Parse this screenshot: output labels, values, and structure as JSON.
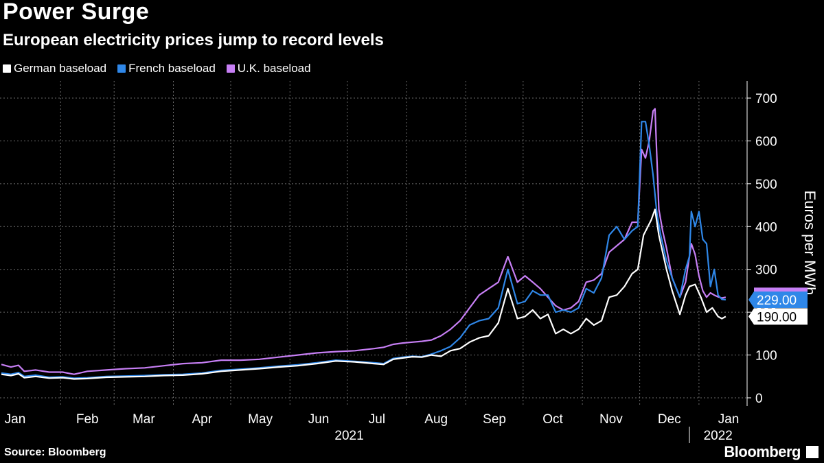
{
  "header": {
    "title": "Power Surge",
    "subtitle": "European electricity prices jump to record levels"
  },
  "footer": {
    "source": "Source: Bloomberg",
    "brand": "Bloomberg"
  },
  "colors": {
    "background": "#000000",
    "grid": "#6b6b6b",
    "german": "#ffffff",
    "french": "#2f87e8",
    "uk": "#c77ff5"
  },
  "chart_data": {
    "type": "line",
    "title": "Power Surge",
    "subtitle": "European electricity prices jump to record levels",
    "xlabel": "",
    "ylabel": "Euros per MWh",
    "ylim": [
      0,
      740
    ],
    "yticks": [
      0,
      100,
      200,
      300,
      400,
      500,
      600,
      700
    ],
    "xlim": [
      0,
      383
    ],
    "month_ticks": [
      {
        "label": "Jan",
        "day": 0
      },
      {
        "label": "Feb",
        "day": 31
      },
      {
        "label": "Mar",
        "day": 59
      },
      {
        "label": "Apr",
        "day": 90
      },
      {
        "label": "May",
        "day": 120
      },
      {
        "label": "Jun",
        "day": 151
      },
      {
        "label": "Jul",
        "day": 181
      },
      {
        "label": "Aug",
        "day": 212
      },
      {
        "label": "Sep",
        "day": 243
      },
      {
        "label": "Oct",
        "day": 273
      },
      {
        "label": "Nov",
        "day": 304
      },
      {
        "label": "Dec",
        "day": 334
      },
      {
        "label": "Jan",
        "day": 365
      }
    ],
    "year_labels": [
      {
        "label": "2021",
        "day": 182
      },
      {
        "label": "2022",
        "day": 375
      }
    ],
    "year_divider_day": 360,
    "grid": true,
    "legend_position": "top-left",
    "series": [
      {
        "name": "German baseload",
        "key": "german",
        "last_value_label": "190.00",
        "points": [
          [
            0,
            55
          ],
          [
            5,
            52
          ],
          [
            9,
            56
          ],
          [
            12,
            47
          ],
          [
            18,
            50
          ],
          [
            25,
            46
          ],
          [
            32,
            47
          ],
          [
            38,
            44
          ],
          [
            45,
            45
          ],
          [
            55,
            48
          ],
          [
            65,
            49
          ],
          [
            75,
            50
          ],
          [
            85,
            52
          ],
          [
            95,
            53
          ],
          [
            105,
            56
          ],
          [
            115,
            62
          ],
          [
            125,
            65
          ],
          [
            135,
            68
          ],
          [
            145,
            72
          ],
          [
            155,
            75
          ],
          [
            165,
            80
          ],
          [
            175,
            86
          ],
          [
            185,
            84
          ],
          [
            195,
            80
          ],
          [
            200,
            78
          ],
          [
            205,
            90
          ],
          [
            210,
            93
          ],
          [
            215,
            96
          ],
          [
            220,
            95
          ],
          [
            225,
            100
          ],
          [
            230,
            97
          ],
          [
            235,
            110
          ],
          [
            240,
            115
          ],
          [
            245,
            130
          ],
          [
            250,
            140
          ],
          [
            255,
            145
          ],
          [
            260,
            175
          ],
          [
            265,
            255
          ],
          [
            270,
            185
          ],
          [
            274,
            190
          ],
          [
            278,
            205
          ],
          [
            282,
            185
          ],
          [
            286,
            195
          ],
          [
            290,
            150
          ],
          [
            294,
            160
          ],
          [
            298,
            150
          ],
          [
            302,
            160
          ],
          [
            306,
            185
          ],
          [
            310,
            170
          ],
          [
            314,
            180
          ],
          [
            318,
            235
          ],
          [
            322,
            240
          ],
          [
            326,
            260
          ],
          [
            330,
            290
          ],
          [
            333,
            300
          ],
          [
            336,
            380
          ],
          [
            340,
            415
          ],
          [
            342,
            440
          ],
          [
            344,
            380
          ],
          [
            346,
            340
          ],
          [
            348,
            300
          ],
          [
            351,
            250
          ],
          [
            355,
            195
          ],
          [
            358,
            240
          ],
          [
            360,
            260
          ],
          [
            363,
            265
          ],
          [
            366,
            235
          ],
          [
            369,
            200
          ],
          [
            372,
            210
          ],
          [
            375,
            190
          ],
          [
            377,
            185
          ],
          [
            379,
            190
          ]
        ]
      },
      {
        "name": "French baseload",
        "key": "french",
        "last_value_label": "229.00",
        "points": [
          [
            0,
            58
          ],
          [
            5,
            55
          ],
          [
            9,
            59
          ],
          [
            12,
            50
          ],
          [
            18,
            53
          ],
          [
            25,
            48
          ],
          [
            32,
            49
          ],
          [
            38,
            46
          ],
          [
            45,
            47
          ],
          [
            55,
            50
          ],
          [
            65,
            51
          ],
          [
            75,
            52
          ],
          [
            85,
            54
          ],
          [
            95,
            55
          ],
          [
            105,
            58
          ],
          [
            115,
            64
          ],
          [
            125,
            67
          ],
          [
            135,
            70
          ],
          [
            145,
            74
          ],
          [
            155,
            77
          ],
          [
            165,
            82
          ],
          [
            175,
            88
          ],
          [
            185,
            85
          ],
          [
            195,
            82
          ],
          [
            200,
            80
          ],
          [
            205,
            92
          ],
          [
            210,
            95
          ],
          [
            215,
            97
          ],
          [
            220,
            96
          ],
          [
            225,
            102
          ],
          [
            230,
            110
          ],
          [
            235,
            120
          ],
          [
            240,
            140
          ],
          [
            245,
            170
          ],
          [
            250,
            180
          ],
          [
            255,
            185
          ],
          [
            260,
            210
          ],
          [
            265,
            300
          ],
          [
            270,
            220
          ],
          [
            274,
            225
          ],
          [
            278,
            250
          ],
          [
            282,
            240
          ],
          [
            286,
            240
          ],
          [
            290,
            200
          ],
          [
            294,
            205
          ],
          [
            298,
            200
          ],
          [
            302,
            210
          ],
          [
            306,
            255
          ],
          [
            310,
            245
          ],
          [
            314,
            280
          ],
          [
            318,
            380
          ],
          [
            322,
            400
          ],
          [
            326,
            370
          ],
          [
            330,
            390
          ],
          [
            333,
            400
          ],
          [
            335,
            645
          ],
          [
            337,
            645
          ],
          [
            339,
            590
          ],
          [
            341,
            520
          ],
          [
            343,
            430
          ],
          [
            345,
            380
          ],
          [
            348,
            320
          ],
          [
            351,
            280
          ],
          [
            355,
            235
          ],
          [
            358,
            300
          ],
          [
            360,
            330
          ],
          [
            361,
            435
          ],
          [
            363,
            400
          ],
          [
            365,
            435
          ],
          [
            367,
            370
          ],
          [
            369,
            360
          ],
          [
            371,
            260
          ],
          [
            373,
            300
          ],
          [
            375,
            240
          ],
          [
            377,
            230
          ],
          [
            379,
            229
          ]
        ]
      },
      {
        "name": "U.K. baseload",
        "key": "uk",
        "last_value_label": "",
        "points": [
          [
            0,
            78
          ],
          [
            5,
            72
          ],
          [
            9,
            76
          ],
          [
            12,
            62
          ],
          [
            18,
            65
          ],
          [
            25,
            60
          ],
          [
            32,
            60
          ],
          [
            38,
            55
          ],
          [
            45,
            62
          ],
          [
            55,
            65
          ],
          [
            65,
            68
          ],
          [
            75,
            70
          ],
          [
            85,
            75
          ],
          [
            95,
            80
          ],
          [
            105,
            82
          ],
          [
            115,
            88
          ],
          [
            125,
            88
          ],
          [
            135,
            90
          ],
          [
            145,
            95
          ],
          [
            155,
            100
          ],
          [
            165,
            105
          ],
          [
            175,
            108
          ],
          [
            185,
            110
          ],
          [
            195,
            115
          ],
          [
            200,
            118
          ],
          [
            205,
            125
          ],
          [
            210,
            128
          ],
          [
            215,
            130
          ],
          [
            220,
            132
          ],
          [
            225,
            135
          ],
          [
            230,
            145
          ],
          [
            235,
            160
          ],
          [
            240,
            180
          ],
          [
            245,
            210
          ],
          [
            250,
            240
          ],
          [
            255,
            255
          ],
          [
            260,
            270
          ],
          [
            265,
            330
          ],
          [
            270,
            270
          ],
          [
            274,
            285
          ],
          [
            278,
            270
          ],
          [
            282,
            255
          ],
          [
            286,
            235
          ],
          [
            290,
            215
          ],
          [
            294,
            205
          ],
          [
            298,
            210
          ],
          [
            302,
            225
          ],
          [
            306,
            270
          ],
          [
            310,
            275
          ],
          [
            314,
            290
          ],
          [
            318,
            340
          ],
          [
            322,
            355
          ],
          [
            326,
            370
          ],
          [
            330,
            410
          ],
          [
            333,
            410
          ],
          [
            335,
            580
          ],
          [
            337,
            560
          ],
          [
            339,
            600
          ],
          [
            341,
            670
          ],
          [
            342,
            675
          ],
          [
            344,
            440
          ],
          [
            346,
            390
          ],
          [
            348,
            350
          ],
          [
            351,
            280
          ],
          [
            355,
            235
          ],
          [
            358,
            270
          ],
          [
            361,
            360
          ],
          [
            363,
            335
          ],
          [
            365,
            285
          ],
          [
            367,
            250
          ],
          [
            369,
            235
          ],
          [
            371,
            245
          ],
          [
            373,
            240
          ],
          [
            375,
            236
          ],
          [
            377,
            233
          ],
          [
            379,
            235
          ]
        ]
      }
    ]
  }
}
